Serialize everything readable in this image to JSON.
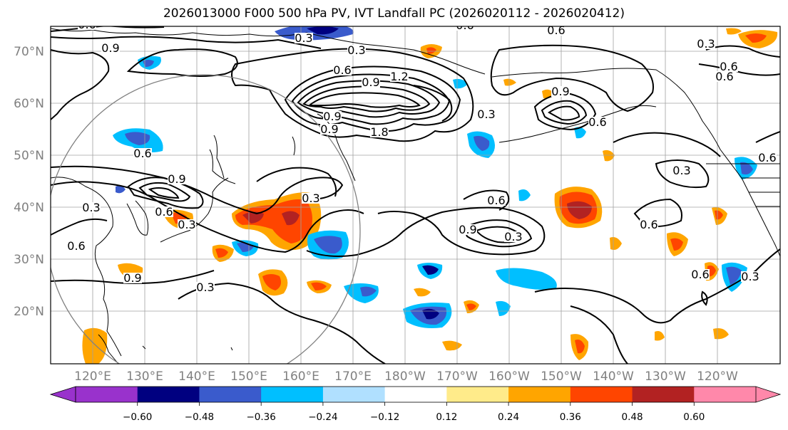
{
  "title": "2026013000 F000 500 hPa PV, IVT Landfall PC (2026020112 - 2026020412)",
  "lon_labels": [
    "120°E",
    "130°E",
    "140°E",
    "150°E",
    "160°E",
    "170°E",
    "180°W",
    "170°W",
    "160°W",
    "150°W",
    "140°W",
    "130°W",
    "120°W"
  ],
  "lat_labels": [
    "70°N",
    "60°N",
    "50°N",
    "40°N",
    "30°N",
    "20°N"
  ],
  "colorbar": {
    "colors": [
      "#9932cc",
      "#000080",
      "#3a5bcc",
      "#00bfff",
      "#b0e0ff",
      "#ffffff",
      "#ffeb8a",
      "#ffa500",
      "#ff4500",
      "#b22222",
      "#ff88aa"
    ],
    "labels": [
      "−0.60",
      "−0.48",
      "−0.36",
      "−0.24",
      "−0.12",
      "0.12",
      "0.24",
      "0.36",
      "0.48",
      "0.60"
    ]
  },
  "contour_labels": [
    "0.6",
    "0.9",
    "0.3",
    "0.3",
    "0.6",
    "0.9",
    "1.2",
    "1.8",
    "0.9",
    "0.3",
    "0.6",
    "0.6",
    "0.9",
    "0.6",
    "0.9",
    "0.3",
    "0.6",
    "0.3",
    "0.3",
    "0.6",
    "0.9",
    "0.3",
    "0.6",
    "0.9",
    "0.3",
    "0.6",
    "0.3",
    "0.6",
    "0.6",
    "0.3",
    "0.6",
    "0.6",
    "0.3",
    "0.9",
    "0.6"
  ],
  "colors": {
    "contour": "#000000",
    "grid": "#a0a0a0",
    "coast": "#000000",
    "circle": "#808080"
  }
}
